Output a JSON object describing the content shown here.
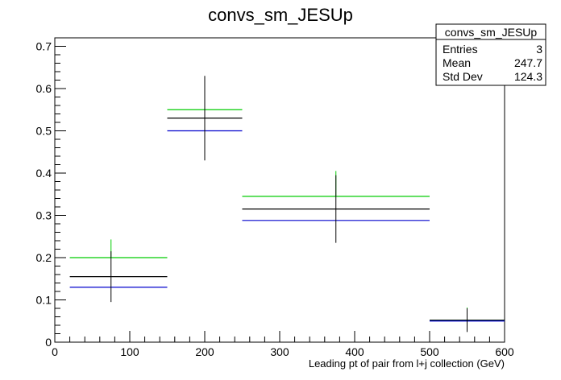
{
  "chart_data": {
    "type": "scatter",
    "title": "convs_sm_JESUp",
    "xlabel": "Leading pt of pair from l+j collection (GeV)",
    "ylabel": "",
    "xlim": [
      0,
      600
    ],
    "ylim": [
      0,
      0.72
    ],
    "x_ticks": [
      0,
      100,
      200,
      300,
      400,
      500,
      600
    ],
    "y_ticks": [
      0,
      0.1,
      0.2,
      0.3,
      0.4,
      0.5,
      0.6,
      0.7
    ],
    "grid": false,
    "stats_box": {
      "name": "convs_sm_JESUp",
      "rows": [
        {
          "label": "Entries",
          "value": "3"
        },
        {
          "label": "Mean",
          "value": "247.7"
        },
        {
          "label": "Std Dev",
          "value": "124.3"
        }
      ]
    },
    "series": [
      {
        "color": "#00cc00",
        "bins": [
          {
            "xlow": 20,
            "xhigh": 150,
            "y": 0.2
          },
          {
            "xlow": 150,
            "xhigh": 250,
            "y": 0.55
          },
          {
            "xlow": 250,
            "xhigh": 500,
            "y": 0.345
          },
          {
            "xlow": 500,
            "xhigh": 600,
            "y": 0.052
          }
        ]
      },
      {
        "color": "#000000",
        "bins": [
          {
            "xlow": 20,
            "xhigh": 150,
            "y": 0.155,
            "err": 0.06
          },
          {
            "xlow": 150,
            "xhigh": 250,
            "y": 0.53,
            "err": 0.1
          },
          {
            "xlow": 250,
            "xhigh": 500,
            "y": 0.315,
            "err": 0.08
          },
          {
            "xlow": 500,
            "xhigh": 600,
            "y": 0.052,
            "err": 0.028
          }
        ]
      },
      {
        "color": "#0000cc",
        "bins": [
          {
            "xlow": 20,
            "xhigh": 150,
            "y": 0.13
          },
          {
            "xlow": 150,
            "xhigh": 250,
            "y": 0.5
          },
          {
            "xlow": 250,
            "xhigh": 500,
            "y": 0.288
          },
          {
            "xlow": 500,
            "xhigh": 600,
            "y": 0.05
          }
        ]
      }
    ],
    "green_error_bars": [
      {
        "x": 75,
        "ylow": 0.2,
        "yhigh": 0.243
      },
      {
        "x": 200,
        "ylow": 0.55,
        "yhigh": 0.625
      },
      {
        "x": 375,
        "ylow": 0.345,
        "yhigh": 0.405
      },
      {
        "x": 550,
        "ylow": 0.052,
        "yhigh": 0.082
      }
    ]
  }
}
